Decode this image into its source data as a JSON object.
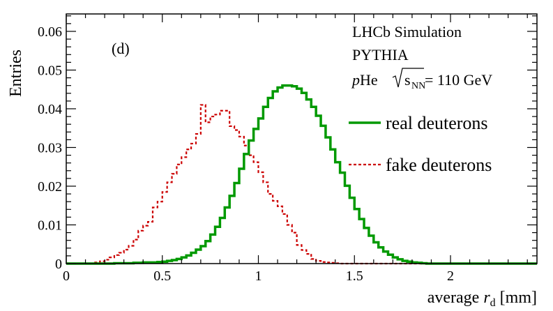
{
  "chart_data": {
    "type": "line",
    "title": "",
    "panel_label": "(d)",
    "xlabel": {
      "prefix": "average ",
      "var": "r",
      "sub": "d",
      "unit": " [mm]"
    },
    "ylabel": "Entries",
    "xlim": [
      0,
      2.45
    ],
    "ylim": [
      0,
      0.0645
    ],
    "x_ticks": [
      0,
      0.5,
      1,
      1.5,
      2
    ],
    "x_tick_labels": [
      "0",
      "0.5",
      "1",
      "1.5",
      "2"
    ],
    "y_ticks": [
      0,
      0.01,
      0.02,
      0.03,
      0.04,
      0.05,
      0.06
    ],
    "y_tick_labels": [
      "0",
      "0.01",
      "0.02",
      "0.03",
      "0.04",
      "0.05",
      "0.06"
    ],
    "grid": false,
    "annotations": {
      "experiment": "LHCb Simulation",
      "generator": "PYTHIA",
      "collision": {
        "proj": "p",
        "target": "He",
        "sqrt_var": "s",
        "sqrt_sub": "NN",
        "energy": " = 110 GeV"
      }
    },
    "legend_position": "top-right",
    "bin_width": 0.025,
    "series": [
      {
        "name": "real deuterons",
        "style": "solid",
        "color": "#009900",
        "x_start": 0.25,
        "values": [
          0.0001,
          0.0001,
          0.0001,
          0.0001,
          0.0002,
          0.0002,
          0.0003,
          0.0003,
          0.0003,
          0.0004,
          0.0005,
          0.0007,
          0.0009,
          0.0012,
          0.0016,
          0.0021,
          0.0028,
          0.0036,
          0.0045,
          0.0058,
          0.0075,
          0.0095,
          0.0118,
          0.0145,
          0.0175,
          0.0208,
          0.0245,
          0.0283,
          0.0318,
          0.0348,
          0.0375,
          0.0405,
          0.0428,
          0.0445,
          0.0455,
          0.046,
          0.046,
          0.0458,
          0.0452,
          0.0441,
          0.0424,
          0.0405,
          0.0382,
          0.0356,
          0.0326,
          0.0295,
          0.0262,
          0.0235,
          0.0201,
          0.017,
          0.0141,
          0.0115,
          0.0092,
          0.0072,
          0.0055,
          0.0042,
          0.0031,
          0.0023,
          0.0016,
          0.0011,
          0.0007,
          0.0005,
          0.0003,
          0.0002,
          0.0001
        ]
      },
      {
        "name": "fake deuterons",
        "style": "dashed",
        "color": "#cc0000",
        "x_start": 0.15,
        "values": [
          0.0003,
          0.0006,
          0.001,
          0.0016,
          0.0022,
          0.0028,
          0.0036,
          0.0046,
          0.0062,
          0.0085,
          0.0098,
          0.0108,
          0.0145,
          0.016,
          0.0185,
          0.021,
          0.0232,
          0.0256,
          0.0275,
          0.0295,
          0.031,
          0.0335,
          0.041,
          0.0365,
          0.038,
          0.0385,
          0.0395,
          0.0395,
          0.0355,
          0.0345,
          0.0328,
          0.0305,
          0.028,
          0.0262,
          0.0236,
          0.021,
          0.018,
          0.0162,
          0.0148,
          0.0128,
          0.01,
          0.008,
          0.0048,
          0.0035,
          0.0025,
          0.0012,
          0.0007,
          0.0004,
          0.0003,
          0.0002,
          0.0001
        ]
      }
    ]
  }
}
